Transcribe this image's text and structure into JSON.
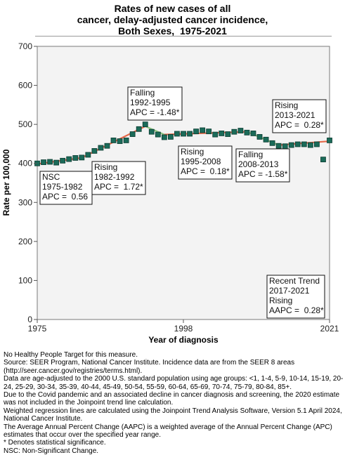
{
  "title_lines": [
    "Rates of new cases of all",
    "cancer, delay-adjusted cancer incidence,",
    "Both Sexes,  1975-2021"
  ],
  "chart_data": {
    "type": "scatter",
    "xlabel": "Year of diagnosis",
    "ylabel": "Rate per 100,000",
    "xlim": [
      1975,
      2021
    ],
    "ylim": [
      0,
      700
    ],
    "x_ticks": [
      {
        "value": 1975,
        "label": "1975"
      },
      {
        "value": 1998,
        "label": "1998"
      },
      {
        "value": 2021,
        "label": "2021"
      }
    ],
    "y_ticks": [
      {
        "value": 0,
        "label": "0"
      },
      {
        "value": 100,
        "label": "100"
      },
      {
        "value": 200,
        "label": "200"
      },
      {
        "value": 300,
        "label": "300"
      },
      {
        "value": 400,
        "label": "400"
      },
      {
        "value": 500,
        "label": "500"
      },
      {
        "value": 600,
        "label": "600"
      },
      {
        "value": 700,
        "label": "700"
      }
    ],
    "grid": false,
    "colors": {
      "plot_background": "#f3f3f3",
      "marker_fill": "#1b6b59",
      "marker_stroke": "#0b3b30",
      "trend_orange": "#e46a4b",
      "trend_green": "#8cc37f"
    },
    "observed": {
      "x": [
        1975,
        1976,
        1977,
        1978,
        1979,
        1980,
        1981,
        1982,
        1983,
        1984,
        1985,
        1986,
        1987,
        1988,
        1989,
        1990,
        1991,
        1992,
        1993,
        1994,
        1995,
        1996,
        1997,
        1998,
        1999,
        2000,
        2001,
        2002,
        2003,
        2004,
        2005,
        2006,
        2007,
        2008,
        2009,
        2010,
        2011,
        2012,
        2013,
        2014,
        2015,
        2016,
        2017,
        2018,
        2019,
        2020,
        2021
      ],
      "y": [
        400,
        403,
        404,
        402,
        407,
        411,
        414,
        415,
        422,
        432,
        440,
        445,
        459,
        457,
        459,
        475,
        488,
        500,
        481,
        474,
        467,
        468,
        476,
        476,
        476,
        482,
        485,
        482,
        474,
        477,
        475,
        481,
        484,
        479,
        477,
        468,
        461,
        452,
        445,
        444,
        447,
        449,
        449,
        447,
        449,
        410,
        459
      ]
    },
    "trends": [
      {
        "label_lines": [
          "NSC",
          "1975-1982",
          "APC =  0.56"
        ],
        "start": [
          1975,
          398.5
        ],
        "end": [
          1982,
          414.5
        ],
        "color": "orange"
      },
      {
        "label_lines": [
          "Rising",
          "1982-1992",
          "APC =  1.72*"
        ],
        "start": [
          1982,
          414.5
        ],
        "end": [
          1992,
          495
        ],
        "color": "orange"
      },
      {
        "label_lines": [
          "Falling",
          "1992-1995",
          "APC = -1.48*"
        ],
        "start": [
          1992,
          495
        ],
        "end": [
          1995,
          474
        ],
        "color": "green"
      },
      {
        "label_lines": [
          "Rising",
          "1995-2008",
          "APC =  0.18*"
        ],
        "start": [
          1995,
          474
        ],
        "end": [
          2008,
          481
        ],
        "color": "orange"
      },
      {
        "label_lines": [
          "Falling",
          "2008-2013",
          "APC = -1.58*"
        ],
        "start": [
          2008,
          481
        ],
        "end": [
          2013,
          447
        ],
        "color": "green"
      },
      {
        "label_lines": [
          "Rising",
          "2013-2021",
          "APC =  0.28*"
        ],
        "start": [
          2013,
          447
        ],
        "end": [
          2021,
          457
        ],
        "color": "orange"
      }
    ],
    "recent_trend": {
      "label_lines": [
        "Recent Trend",
        "2017-2021",
        "Rising",
        "AAPC =  0.28*"
      ]
    }
  },
  "footnotes": [
    "No Healthy People Target for this measure.",
    "Source: SEER Program, National Cancer Institute. Incidence data are from the SEER 8 areas (http://seer.cancer.gov/registries/terms.html).",
    "Data are age-adjusted to the 2000 U.S. standard population using age groups: <1, 1-4, 5-9, 10-14, 15-19, 20-24, 25-29, 30-34, 35-39, 40-44, 45-49, 50-54, 55-59, 60-64, 65-69, 70-74, 75-79, 80-84, 85+.",
    "Due to the Covid pandemic and an associated decline in cancer diagnosis and screening, the 2020 estimate was not included in the Joinpoint trend line calculation.",
    "Weighted regression lines are calculated using the Joinpoint Trend Analysis Software, Version 5.1 April 2024, National Cancer Institute.",
    "The Average Annual Percent Change (AAPC) is a weighted average of the Annual Percent Change (APC) estimates that occur over the specified year range.",
    "* Denotes statistical significance.",
    "NSC: Non-Significant Change."
  ]
}
